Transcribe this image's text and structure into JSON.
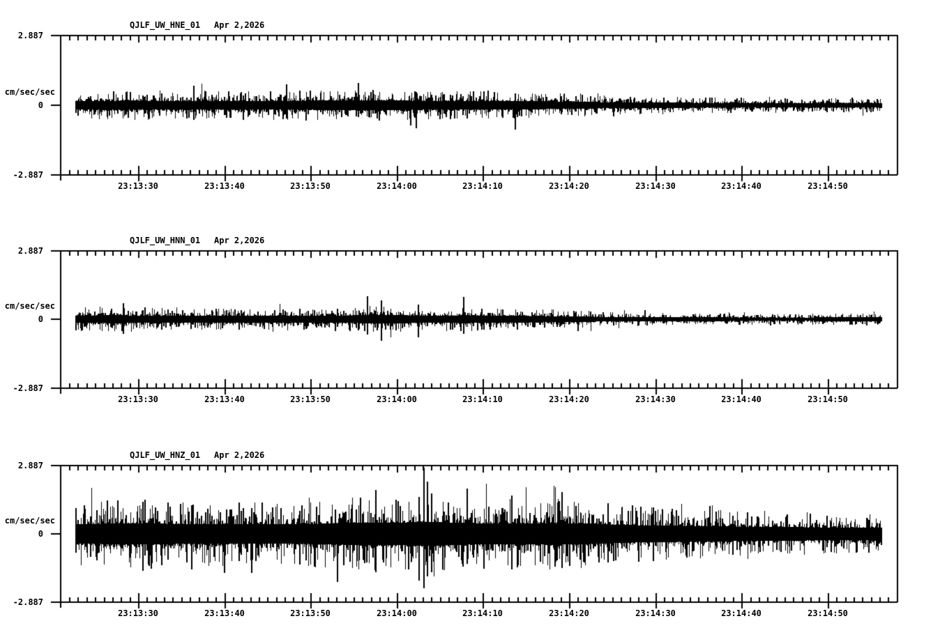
{
  "app": {
    "description": "Three-channel seismogram strip chart (accelerometer traces), black on white",
    "colors": {
      "ink": "#000000",
      "background": "#ffffff"
    }
  },
  "chart_data": {
    "type": "line",
    "subtype": "seismogram-noise-traces",
    "xlabel": "",
    "ylabel": "cm/sec/sec",
    "x_axis": {
      "t_window_start_s": 20.9,
      "t_window_end_s": 118.1,
      "trace_start_s": 22.7,
      "trace_end_s": 116.2,
      "minor_tick_interval_s": 1,
      "major_tick_interval_s": 10,
      "major_ticks": [
        {
          "t": 30,
          "label": "23:13:30"
        },
        {
          "t": 40,
          "label": "23:13:40"
        },
        {
          "t": 50,
          "label": "23:13:50"
        },
        {
          "t": 60,
          "label": "23:14:00"
        },
        {
          "t": 70,
          "label": "23:14:10"
        },
        {
          "t": 80,
          "label": "23:14:20"
        },
        {
          "t": 90,
          "label": "23:14:30"
        },
        {
          "t": 100,
          "label": "23:14:40"
        },
        {
          "t": 110,
          "label": "23:14:50"
        }
      ]
    },
    "panels": [
      {
        "station": "QJLF_UW_HNE_01",
        "date": "Apr 2,2026",
        "units_label": "cm/sec/sec",
        "ymax_label": "2.887",
        "yzero_label": "0",
        "ymin_label": "-2.887",
        "ylim": [
          -2.887,
          2.887
        ],
        "seed": 101,
        "envelope": {
          "t": [
            22.7,
            30,
            40,
            50,
            56,
            62,
            68,
            74,
            80,
            86,
            92,
            100,
            108,
            116.2
          ],
          "amp": [
            0.3,
            0.31,
            0.3,
            0.31,
            0.33,
            0.31,
            0.3,
            0.29,
            0.24,
            0.19,
            0.17,
            0.16,
            0.15,
            0.16
          ]
        },
        "spikes": [
          {
            "t": 36.5,
            "hi": 0.8,
            "lo": -0.6
          },
          {
            "t": 47.2,
            "hi": 0.85,
            "lo": -0.55
          },
          {
            "t": 55.6,
            "hi": 0.92,
            "lo": -0.5
          },
          {
            "t": 62.3,
            "hi": 0.55,
            "lo": -0.95
          },
          {
            "t": 73.8,
            "hi": 0.5,
            "lo": -1.0
          }
        ]
      },
      {
        "station": "QJLF_UW_HNN_01",
        "date": "Apr 2,2026",
        "units_label": "cm/sec/sec",
        "ymax_label": "2.887",
        "yzero_label": "0",
        "ymin_label": "-2.887",
        "ylim": [
          -2.887,
          2.887
        ],
        "seed": 202,
        "envelope": {
          "t": [
            22.7,
            28,
            34,
            42,
            50,
            56,
            60,
            64,
            68,
            72,
            78,
            84,
            90,
            100,
            108,
            116.2
          ],
          "amp": [
            0.26,
            0.27,
            0.24,
            0.22,
            0.23,
            0.27,
            0.28,
            0.24,
            0.27,
            0.23,
            0.21,
            0.16,
            0.13,
            0.12,
            0.12,
            0.13
          ]
        },
        "spikes": [
          {
            "t": 28.3,
            "hi": 0.68,
            "lo": -0.6
          },
          {
            "t": 56.6,
            "hi": 0.95,
            "lo": -0.65
          },
          {
            "t": 58.2,
            "hi": 0.8,
            "lo": -0.9
          },
          {
            "t": 62.5,
            "hi": 0.6,
            "lo": -0.75
          },
          {
            "t": 67.8,
            "hi": 0.92,
            "lo": -0.6
          }
        ]
      },
      {
        "station": "QJLF_UW_HNZ_01",
        "date": "Apr 2,2026",
        "units_label": "cm/sec/sec",
        "ymax_label": "2.887",
        "yzero_label": "0",
        "ymin_label": "-2.887",
        "ylim": [
          -2.887,
          2.887
        ],
        "seed": 303,
        "envelope": {
          "t": [
            22.7,
            28,
            34,
            40,
            46,
            52,
            56,
            60,
            63,
            66,
            70,
            74,
            78,
            82,
            86,
            90,
            95,
            100,
            106,
            112,
            116.2
          ],
          "amp": [
            0.66,
            0.74,
            0.7,
            0.68,
            0.66,
            0.72,
            0.8,
            0.78,
            0.85,
            0.78,
            0.74,
            0.72,
            0.76,
            0.72,
            0.62,
            0.58,
            0.54,
            0.5,
            0.47,
            0.44,
            0.42
          ]
        },
        "spikes": [
          {
            "t": 30.6,
            "hi": 1.35,
            "lo": -1.55
          },
          {
            "t": 36.2,
            "hi": 1.2,
            "lo": -1.5
          },
          {
            "t": 57.6,
            "hi": 1.85,
            "lo": -1.6
          },
          {
            "t": 62.6,
            "hi": 1.55,
            "lo": -1.95
          },
          {
            "t": 63.15,
            "hi": 2.78,
            "lo": -2.3
          },
          {
            "t": 63.6,
            "hi": 2.2,
            "lo": -1.8
          },
          {
            "t": 64.1,
            "hi": 1.7,
            "lo": -1.6
          },
          {
            "t": 68.2,
            "hi": 1.9,
            "lo": -1.25
          },
          {
            "t": 73.4,
            "hi": 1.6,
            "lo": -1.5
          },
          {
            "t": 79.2,
            "hi": 1.75,
            "lo": -1.45
          },
          {
            "t": 84.5,
            "hi": 1.3,
            "lo": -1.2
          }
        ]
      }
    ]
  }
}
